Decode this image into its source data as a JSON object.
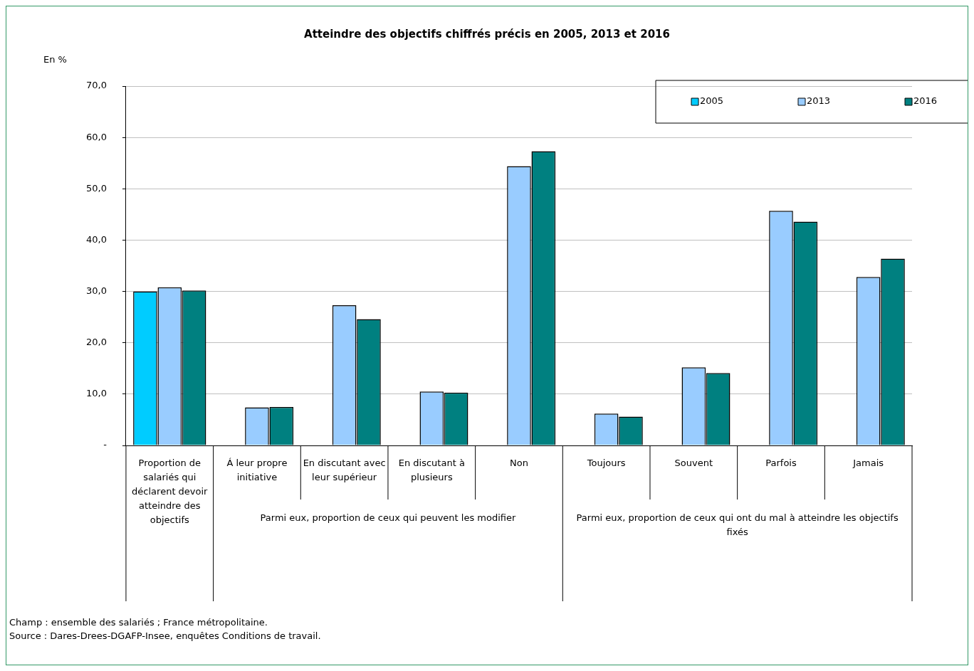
{
  "chart_data": {
    "type": "bar",
    "title": "Atteindre des objectifs chiffrés précis en 2005, 2013 et 2016",
    "ylabel": "En %",
    "categories": [
      "Proportion de salariés qui déclarent devoir atteindre des objectifs",
      "Á leur propre initiative",
      "En discutant avec leur supérieur",
      "En discutant à plusieurs",
      "Non",
      "Toujours",
      "Souvent",
      "Parfois",
      "Jamais"
    ],
    "series": [
      {
        "name": "2005",
        "color": "#00ccff",
        "values": [
          30.0,
          null,
          null,
          null,
          null,
          null,
          null,
          null,
          null
        ]
      },
      {
        "name": "2013",
        "color": "#99ccff",
        "values": [
          30.8,
          7.4,
          27.3,
          10.5,
          54.4,
          6.2,
          15.2,
          45.7,
          32.8
        ]
      },
      {
        "name": "2016",
        "color": "#008080",
        "values": [
          30.2,
          7.5,
          24.6,
          10.3,
          57.3,
          5.6,
          14.1,
          43.6,
          36.4
        ]
      }
    ],
    "ylim": [
      0,
      70
    ],
    "yticks": [
      {
        "value": 0,
        "label": "-"
      },
      {
        "value": 10,
        "label": "10,0"
      },
      {
        "value": 20,
        "label": "20,0"
      },
      {
        "value": 30,
        "label": "30,0"
      },
      {
        "value": 40,
        "label": "40,0"
      },
      {
        "value": 50,
        "label": "50,0"
      },
      {
        "value": 60,
        "label": "60,0"
      },
      {
        "value": 70,
        "label": "70,0"
      }
    ],
    "grid": "y",
    "legend": "top right",
    "annotations": [
      "Parmi eux, proportion de ceux qui peuvent les modifier",
      "Parmi eux, proportion de ceux qui ont du mal à atteindre les objectifs fixés",
      "Champ : ensemble des salariés ; France métropolitaine.",
      "Source : Dares-Drees-DGAFP-Insee, enquêtes Conditions de travail."
    ]
  }
}
